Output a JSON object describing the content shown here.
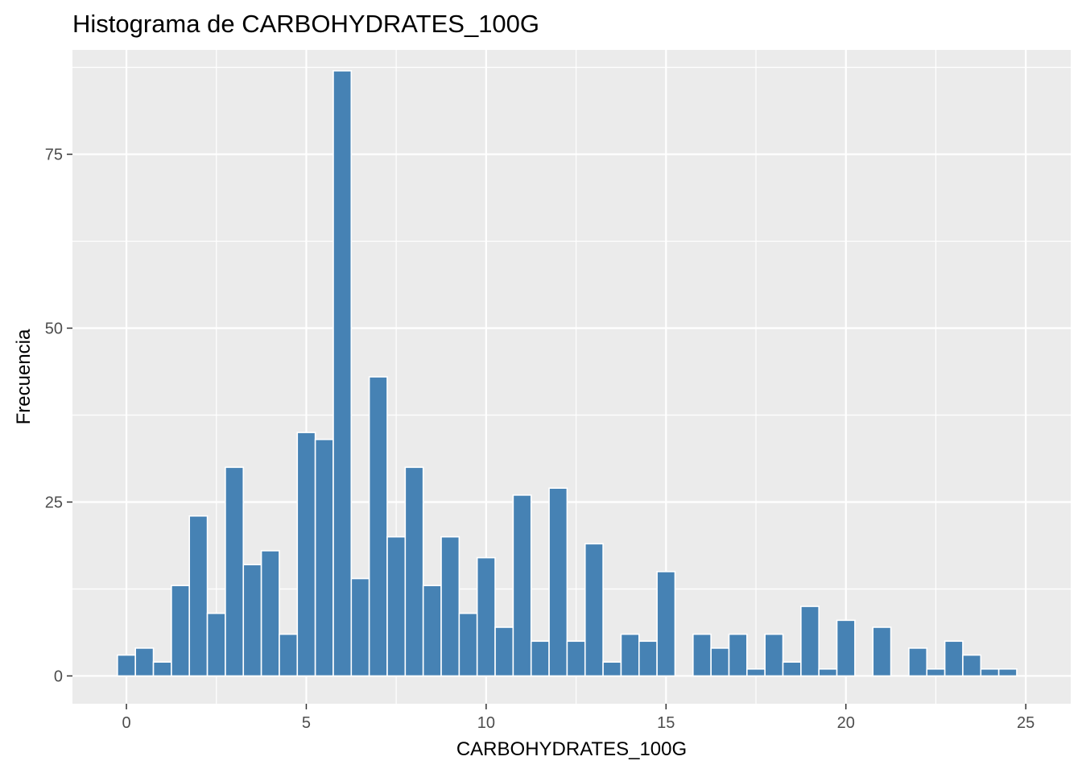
{
  "chart_data": {
    "type": "bar",
    "title": "Histograma de CARBOHYDRATES_100G",
    "xlabel": "CARBOHYDRATES_100G",
    "ylabel": "Frecuencia",
    "xlim": [
      -1.5,
      26.25
    ],
    "ylim": [
      -4,
      90
    ],
    "x_ticks": [
      0,
      5,
      10,
      15,
      20,
      25
    ],
    "x_tick_labels": [
      "0",
      "5",
      "10",
      "15",
      "20",
      "25"
    ],
    "y_ticks": [
      0,
      25,
      50,
      75
    ],
    "y_tick_labels": [
      "0",
      "25",
      "50",
      "75"
    ],
    "bin_width": 0.5,
    "bin_centers": [
      0,
      0.5,
      1,
      1.5,
      2,
      2.5,
      3,
      3.5,
      4,
      4.5,
      5,
      5.5,
      6,
      6.5,
      7,
      7.5,
      8,
      8.5,
      9,
      9.5,
      10,
      10.5,
      11,
      11.5,
      12,
      12.5,
      13,
      13.5,
      14,
      14.5,
      15,
      15.5,
      16,
      16.5,
      17,
      17.5,
      18,
      18.5,
      19,
      19.5,
      20,
      20.5,
      21,
      21.5,
      22,
      22.5,
      23,
      23.5,
      24,
      24.5
    ],
    "values": [
      3,
      4,
      2,
      13,
      23,
      9,
      30,
      16,
      18,
      6,
      35,
      34,
      87,
      14,
      43,
      20,
      30,
      13,
      20,
      9,
      17,
      7,
      26,
      5,
      27,
      5,
      19,
      2,
      6,
      5,
      15,
      0,
      6,
      4,
      6,
      1,
      6,
      2,
      10,
      1,
      8,
      0,
      7,
      0,
      4,
      1,
      5,
      3,
      1,
      1
    ],
    "bar_fill": "#4682b4",
    "bar_outline": "#ffffff",
    "panel_background": "#ebebeb",
    "grid": true,
    "legend": "none"
  }
}
